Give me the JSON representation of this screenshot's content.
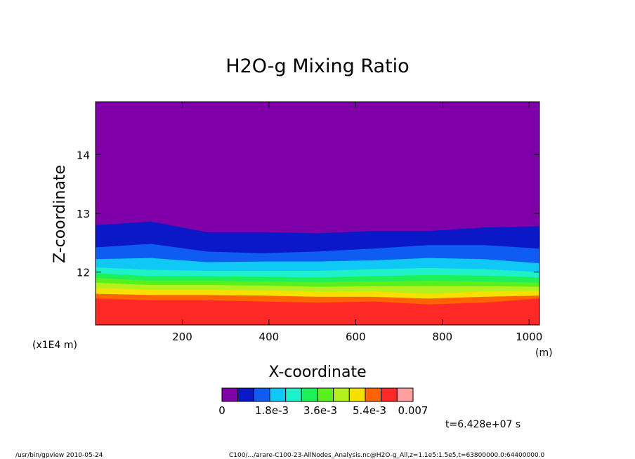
{
  "chart_data": {
    "type": "contour",
    "title": "H2O-g Mixing Ratio",
    "xlabel": "X-coordinate",
    "ylabel": "Z-coordinate",
    "x_unit": "(m)",
    "y_unit": "(x1E4 m)",
    "xlim": [
      0,
      1024
    ],
    "ylim": [
      11.1,
      14.9
    ],
    "x_ticks": [
      200,
      400,
      600,
      800,
      1000
    ],
    "y_ticks": [
      12,
      13,
      14
    ],
    "levels": [
      {
        "color": "#7f00a9",
        "from_value": 0
      },
      {
        "color": "#0a18c8"
      },
      {
        "color": "#0f5cf0"
      },
      {
        "color": "#10c8f5"
      },
      {
        "color": "#1ef0c8"
      },
      {
        "color": "#1ef05a"
      },
      {
        "color": "#5af01e"
      },
      {
        "color": "#b4f01e"
      },
      {
        "color": "#f5e000"
      },
      {
        "color": "#ff6400"
      },
      {
        "color": "#ff2a28"
      },
      {
        "color": "#ffa0a0"
      }
    ],
    "colorbar_labels": [
      "0",
      "1.8e-3",
      "3.6e-3",
      "5.4e-3",
      "0.007"
    ],
    "band_boundaries_at_x": [
      0,
      128,
      256,
      384,
      512,
      640,
      768,
      896,
      1024
    ],
    "band_boundaries_z": [
      [
        12.8,
        12.86,
        12.68,
        12.68,
        12.66,
        12.7,
        12.7,
        12.76,
        12.78
      ],
      [
        12.42,
        12.48,
        12.35,
        12.32,
        12.35,
        12.4,
        12.46,
        12.46,
        12.4
      ],
      [
        12.22,
        12.24,
        12.17,
        12.18,
        12.18,
        12.2,
        12.24,
        12.22,
        12.15
      ],
      [
        12.08,
        12.04,
        12.02,
        12.02,
        12.02,
        12.05,
        12.07,
        12.05,
        12.0
      ],
      [
        11.98,
        11.93,
        11.93,
        11.92,
        11.91,
        11.93,
        11.95,
        11.94,
        11.91
      ],
      [
        11.9,
        11.85,
        11.85,
        11.84,
        11.83,
        11.84,
        11.85,
        11.84,
        11.82
      ],
      [
        11.82,
        11.78,
        11.78,
        11.77,
        11.75,
        11.76,
        11.76,
        11.76,
        11.75
      ],
      [
        11.73,
        11.7,
        11.7,
        11.69,
        11.67,
        11.67,
        11.63,
        11.67,
        11.68
      ],
      [
        11.63,
        11.61,
        11.61,
        11.6,
        11.58,
        11.58,
        11.55,
        11.58,
        11.6
      ],
      [
        11.55,
        11.52,
        11.52,
        11.5,
        11.48,
        11.5,
        11.45,
        11.48,
        11.55
      ]
    ]
  },
  "annotations": {
    "time": "t=6.428e+07 s",
    "footer_left": "/usr/bin/gpview  2010-05-24",
    "footer_right": "C100/.../arare-C100-23-AllNodes_Analysis.nc@H2O-g_All,z=1.1e5:1.5e5,t=63800000.0:64400000.0"
  }
}
